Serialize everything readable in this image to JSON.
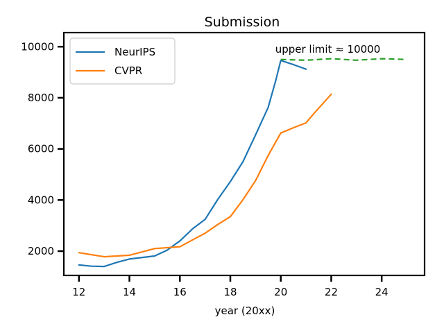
{
  "chart_data": {
    "type": "line",
    "title": "Submission",
    "xlabel": "year (20xx)",
    "ylabel": "",
    "xlim": [
      11.4,
      25.7
    ],
    "ylim": [
      1050,
      10550
    ],
    "xticks": [
      12,
      14,
      16,
      18,
      20,
      22,
      24
    ],
    "yticks": [
      2000,
      4000,
      6000,
      8000,
      10000
    ],
    "grid": false,
    "legend": "upper left",
    "series": [
      {
        "name": "NeurIPS",
        "color": "#1f77b4",
        "x": [
          12,
          12.5,
          13,
          13.5,
          14,
          15,
          15.5,
          16,
          16.5,
          17,
          17.5,
          18,
          18.5,
          19,
          19.5,
          19.8,
          20,
          20.5,
          21
        ],
        "y": [
          1460,
          1410,
          1400,
          1560,
          1690,
          1810,
          2040,
          2400,
          2870,
          3240,
          4020,
          4720,
          5500,
          6550,
          7620,
          8680,
          9460,
          9300,
          9120
        ]
      },
      {
        "name": "CVPR",
        "color": "#ff7f0e",
        "x": [
          12,
          13,
          14,
          15,
          16,
          16.5,
          17,
          17.5,
          18,
          18.5,
          19,
          19.5,
          20,
          20.5,
          21,
          21.3,
          22
        ],
        "y": [
          1940,
          1780,
          1840,
          2100,
          2170,
          2440,
          2700,
          3040,
          3350,
          4010,
          4760,
          5740,
          6620,
          6830,
          7020,
          7370,
          8140
        ]
      },
      {
        "name": "upper limit",
        "color": "#2ca02c",
        "style": "dashed",
        "x": [
          20,
          21,
          22,
          23,
          24,
          25
        ],
        "y": [
          9500,
          9470,
          9530,
          9470,
          9530,
          9500
        ]
      }
    ],
    "annotations": [
      {
        "text": "upper limit ≈ 10000",
        "x": 20,
        "y": 9600
      }
    ]
  }
}
